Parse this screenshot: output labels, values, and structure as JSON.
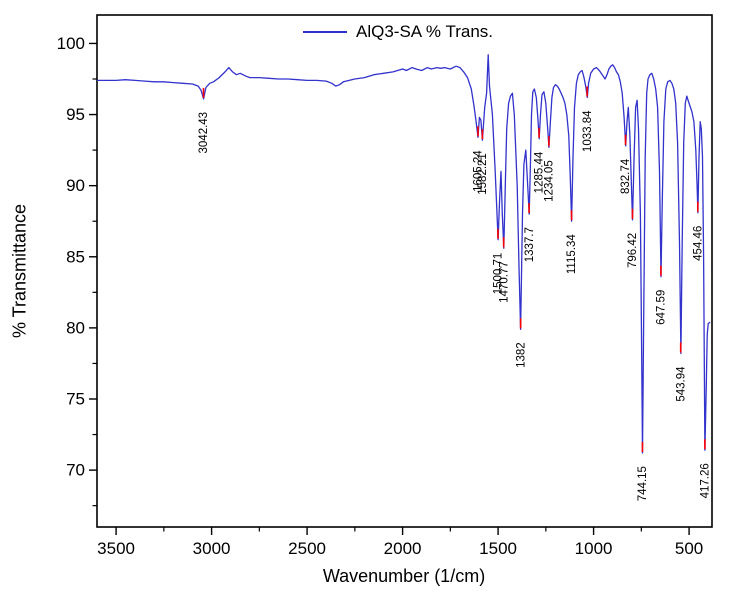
{
  "figure": {
    "legend_label": "AlQ3-SA % Trans.",
    "xlabel": "Wavenumber (1/cm)",
    "ylabel": "% Transmittance"
  },
  "chart_data": {
    "type": "line",
    "title": "",
    "xlabel": "Wavenumber (1/cm)",
    "ylabel": "% Transmittance",
    "x_axis_reversed": true,
    "xlim": [
      3600,
      380
    ],
    "ylim": [
      66,
      102
    ],
    "x_ticks": [
      3500,
      3000,
      2500,
      2000,
      1500,
      1000,
      500
    ],
    "x_minor_ticks": [
      3250,
      2750,
      2250,
      1750,
      1250,
      750
    ],
    "y_ticks": [
      70,
      75,
      80,
      85,
      90,
      95,
      100
    ],
    "y_minor_ticks": [
      67.5,
      72.5,
      77.5,
      82.5,
      87.5,
      92.5,
      97.5
    ],
    "grid": false,
    "legend": {
      "label": "AlQ3-SA % Trans.",
      "position": "top-center"
    },
    "colors": {
      "line": "#3232cd",
      "peak_marker": "#ff0000",
      "axis": "#000000"
    },
    "series": [
      {
        "name": "AlQ3-SA % Trans.",
        "points": [
          [
            3600,
            97.4
          ],
          [
            3500,
            97.4
          ],
          [
            3450,
            97.45
          ],
          [
            3400,
            97.4
          ],
          [
            3350,
            97.35
          ],
          [
            3300,
            97.3
          ],
          [
            3250,
            97.3
          ],
          [
            3200,
            97.25
          ],
          [
            3150,
            97.2
          ],
          [
            3100,
            97.15
          ],
          [
            3070,
            97.0
          ],
          [
            3055,
            96.7
          ],
          [
            3042,
            96.1
          ],
          [
            3030,
            96.9
          ],
          [
            3010,
            97.2
          ],
          [
            2990,
            97.3
          ],
          [
            2960,
            97.6
          ],
          [
            2930,
            98.0
          ],
          [
            2910,
            98.3
          ],
          [
            2890,
            98.0
          ],
          [
            2870,
            97.8
          ],
          [
            2850,
            97.9
          ],
          [
            2820,
            97.7
          ],
          [
            2800,
            97.6
          ],
          [
            2750,
            97.6
          ],
          [
            2700,
            97.55
          ],
          [
            2650,
            97.5
          ],
          [
            2600,
            97.5
          ],
          [
            2550,
            97.45
          ],
          [
            2500,
            97.4
          ],
          [
            2450,
            97.4
          ],
          [
            2400,
            97.35
          ],
          [
            2370,
            97.2
          ],
          [
            2350,
            97.0
          ],
          [
            2330,
            97.1
          ],
          [
            2310,
            97.3
          ],
          [
            2280,
            97.4
          ],
          [
            2250,
            97.5
          ],
          [
            2200,
            97.6
          ],
          [
            2150,
            97.8
          ],
          [
            2100,
            97.9
          ],
          [
            2050,
            98.0
          ],
          [
            2000,
            98.2
          ],
          [
            1980,
            98.1
          ],
          [
            1950,
            98.3
          ],
          [
            1930,
            98.2
          ],
          [
            1900,
            98.1
          ],
          [
            1870,
            98.3
          ],
          [
            1850,
            98.2
          ],
          [
            1820,
            98.3
          ],
          [
            1800,
            98.25
          ],
          [
            1780,
            98.3
          ],
          [
            1750,
            98.2
          ],
          [
            1720,
            98.4
          ],
          [
            1700,
            98.3
          ],
          [
            1680,
            98.0
          ],
          [
            1660,
            97.6
          ],
          [
            1640,
            96.8
          ],
          [
            1625,
            95.5
          ],
          [
            1615,
            94.5
          ],
          [
            1605,
            93.4
          ],
          [
            1598,
            94.8
          ],
          [
            1590,
            94.6
          ],
          [
            1582,
            93.2
          ],
          [
            1570,
            95.5
          ],
          [
            1560,
            96.5
          ],
          [
            1552,
            99.2
          ],
          [
            1545,
            97.0
          ],
          [
            1530,
            95.0
          ],
          [
            1515,
            91.0
          ],
          [
            1500,
            86.2
          ],
          [
            1492,
            89.0
          ],
          [
            1485,
            91.0
          ],
          [
            1478,
            88.0
          ],
          [
            1470,
            85.6
          ],
          [
            1462,
            90.0
          ],
          [
            1455,
            94.0
          ],
          [
            1445,
            95.8
          ],
          [
            1435,
            96.3
          ],
          [
            1425,
            96.5
          ],
          [
            1415,
            95.0
          ],
          [
            1400,
            90.0
          ],
          [
            1390,
            84.0
          ],
          [
            1382,
            79.9
          ],
          [
            1372,
            88.0
          ],
          [
            1365,
            91.5
          ],
          [
            1355,
            92.5
          ],
          [
            1345,
            90.0
          ],
          [
            1337,
            88.0
          ],
          [
            1330,
            92.0
          ],
          [
            1325,
            95.0
          ],
          [
            1318,
            96.6
          ],
          [
            1310,
            96.8
          ],
          [
            1300,
            96.2
          ],
          [
            1292,
            94.8
          ],
          [
            1285,
            93.3
          ],
          [
            1278,
            95.0
          ],
          [
            1270,
            96.4
          ],
          [
            1260,
            96.6
          ],
          [
            1250,
            95.8
          ],
          [
            1240,
            94.0
          ],
          [
            1234,
            92.7
          ],
          [
            1226,
            94.5
          ],
          [
            1218,
            96.2
          ],
          [
            1210,
            96.9
          ],
          [
            1200,
            97.1
          ],
          [
            1190,
            97.0
          ],
          [
            1180,
            96.8
          ],
          [
            1170,
            96.5
          ],
          [
            1160,
            96.2
          ],
          [
            1150,
            95.8
          ],
          [
            1140,
            95.0
          ],
          [
            1130,
            93.5
          ],
          [
            1122,
            90.5
          ],
          [
            1115,
            87.5
          ],
          [
            1108,
            92.0
          ],
          [
            1100,
            95.5
          ],
          [
            1090,
            97.2
          ],
          [
            1080,
            97.8
          ],
          [
            1070,
            98.0
          ],
          [
            1060,
            98.1
          ],
          [
            1050,
            97.6
          ],
          [
            1040,
            96.9
          ],
          [
            1033,
            96.2
          ],
          [
            1026,
            97.2
          ],
          [
            1015,
            97.9
          ],
          [
            1000,
            98.2
          ],
          [
            985,
            98.3
          ],
          [
            970,
            98.1
          ],
          [
            955,
            97.8
          ],
          [
            940,
            97.5
          ],
          [
            930,
            97.8
          ],
          [
            920,
            98.2
          ],
          [
            910,
            98.4
          ],
          [
            900,
            98.5
          ],
          [
            890,
            98.3
          ],
          [
            880,
            98.0
          ],
          [
            870,
            97.8
          ],
          [
            860,
            97.3
          ],
          [
            850,
            96.5
          ],
          [
            840,
            94.8
          ],
          [
            832,
            92.8
          ],
          [
            825,
            94.5
          ],
          [
            818,
            95.5
          ],
          [
            810,
            93.5
          ],
          [
            803,
            90.5
          ],
          [
            796,
            87.6
          ],
          [
            788,
            92.0
          ],
          [
            780,
            95.5
          ],
          [
            772,
            96.0
          ],
          [
            765,
            94.0
          ],
          [
            755,
            88.0
          ],
          [
            748,
            78.0
          ],
          [
            744,
            71.2
          ],
          [
            738,
            80.0
          ],
          [
            730,
            92.0
          ],
          [
            722,
            96.5
          ],
          [
            715,
            97.5
          ],
          [
            705,
            97.8
          ],
          [
            695,
            97.9
          ],
          [
            685,
            97.5
          ],
          [
            675,
            96.8
          ],
          [
            665,
            95.5
          ],
          [
            655,
            91.0
          ],
          [
            647,
            83.6
          ],
          [
            640,
            89.0
          ],
          [
            632,
            94.5
          ],
          [
            622,
            96.8
          ],
          [
            612,
            97.3
          ],
          [
            600,
            97.4
          ],
          [
            590,
            97.2
          ],
          [
            580,
            96.8
          ],
          [
            570,
            95.8
          ],
          [
            560,
            93.0
          ],
          [
            550,
            86.0
          ],
          [
            543,
            78.2
          ],
          [
            536,
            86.0
          ],
          [
            528,
            93.0
          ],
          [
            520,
            95.8
          ],
          [
            512,
            96.3
          ],
          [
            505,
            96.0
          ],
          [
            495,
            95.6
          ],
          [
            485,
            95.2
          ],
          [
            475,
            94.5
          ],
          [
            465,
            92.5
          ],
          [
            458,
            90.0
          ],
          [
            454,
            88.1
          ],
          [
            448,
            92.0
          ],
          [
            442,
            94.5
          ],
          [
            436,
            94.0
          ],
          [
            430,
            92.0
          ],
          [
            424,
            85.0
          ],
          [
            417,
            71.4
          ],
          [
            410,
            76.0
          ],
          [
            405,
            79.5
          ],
          [
            400,
            80.3
          ],
          [
            390,
            80.4
          ]
        ]
      }
    ],
    "peaks": [
      {
        "x": 3042.43,
        "y": 96.1,
        "label": "3042.43"
      },
      {
        "x": 1605.24,
        "y": 93.4,
        "label": "1605.24"
      },
      {
        "x": 1582.21,
        "y": 93.2,
        "label": "1582.21"
      },
      {
        "x": 1500.71,
        "y": 86.2,
        "label": "1500.71"
      },
      {
        "x": 1470.77,
        "y": 85.6,
        "label": "1470.77"
      },
      {
        "x": 1382,
        "y": 79.9,
        "label": "1382"
      },
      {
        "x": 1337.7,
        "y": 88.0,
        "label": "1337.7"
      },
      {
        "x": 1285.44,
        "y": 93.3,
        "label": "1285.44"
      },
      {
        "x": 1234.05,
        "y": 92.7,
        "label": "1234.05"
      },
      {
        "x": 1115.34,
        "y": 87.5,
        "label": "1115.34"
      },
      {
        "x": 1033.84,
        "y": 96.2,
        "label": "1033.84"
      },
      {
        "x": 832.74,
        "y": 92.8,
        "label": "832.74"
      },
      {
        "x": 796.42,
        "y": 87.6,
        "label": "796.42"
      },
      {
        "x": 744.15,
        "y": 71.2,
        "label": "744.15"
      },
      {
        "x": 647.59,
        "y": 83.6,
        "label": "647.59"
      },
      {
        "x": 543.94,
        "y": 78.2,
        "label": "543.94"
      },
      {
        "x": 454.46,
        "y": 88.1,
        "label": "454.46"
      },
      {
        "x": 417.26,
        "y": 71.4,
        "label": "417.26"
      }
    ]
  }
}
